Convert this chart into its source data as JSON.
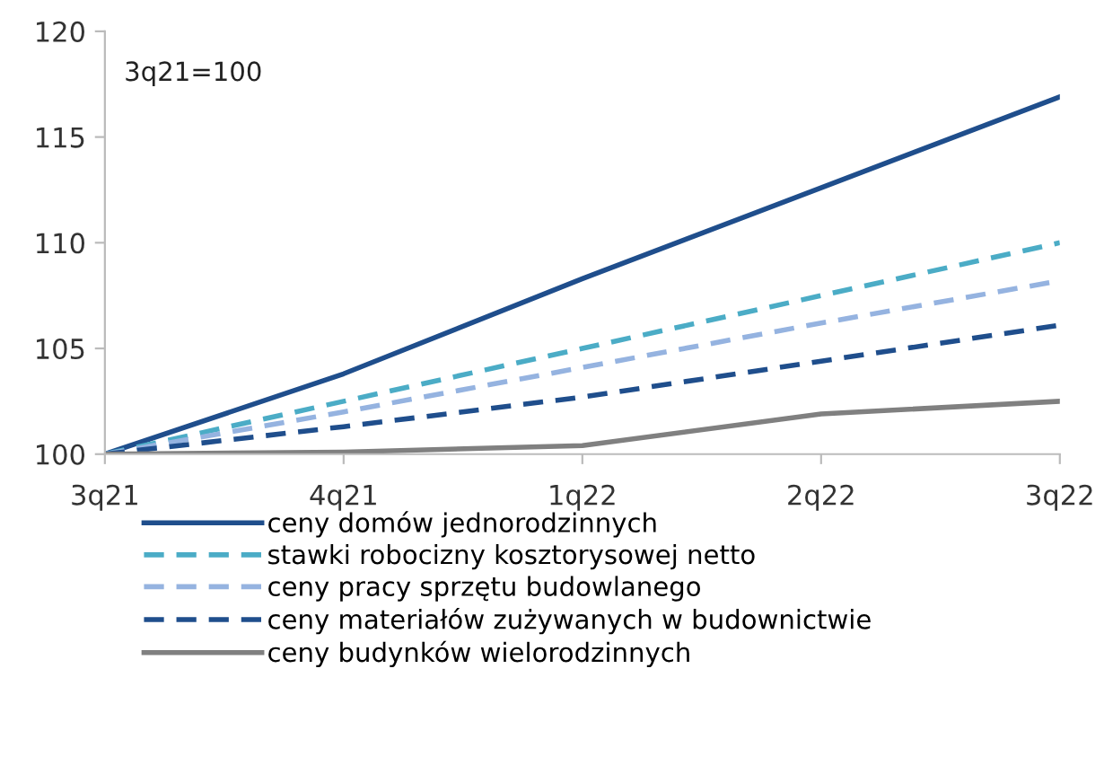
{
  "chart_data": {
    "type": "line",
    "categories": [
      "3q21",
      "4q21",
      "1q22",
      "2q22",
      "3q22"
    ],
    "ylim": [
      100,
      120
    ],
    "yticks": [
      100,
      105,
      110,
      115,
      120
    ],
    "grid": false,
    "legend": "bottom",
    "marker": "none",
    "annotations": [
      "3q21=100"
    ],
    "series": [
      {
        "name": "ceny domów jednorodzinnych",
        "color": "#1f4e8c",
        "line_style": "solid",
        "values": [
          100,
          103.8,
          108.3,
          112.6,
          116.9
        ]
      },
      {
        "name": "stawki robocizny kosztorysowej netto",
        "color": "#4bacc6",
        "line_style": "dashed",
        "values": [
          100,
          102.5,
          105.0,
          107.5,
          110.0
        ]
      },
      {
        "name": "ceny pracy sprzętu budowlanego",
        "color": "#95b3e0",
        "line_style": "dashed",
        "values": [
          100,
          102.0,
          104.1,
          106.2,
          108.2
        ]
      },
      {
        "name": "ceny materiałów zużywanych w budownictwie",
        "color": "#1f4e8c",
        "line_style": "dashed",
        "values": [
          100,
          101.3,
          102.7,
          104.4,
          106.1
        ]
      },
      {
        "name": "ceny budynków wielorodzinnych",
        "color": "#808080",
        "line_style": "solid",
        "values": [
          100,
          100.1,
          100.4,
          101.9,
          102.5
        ]
      }
    ]
  }
}
